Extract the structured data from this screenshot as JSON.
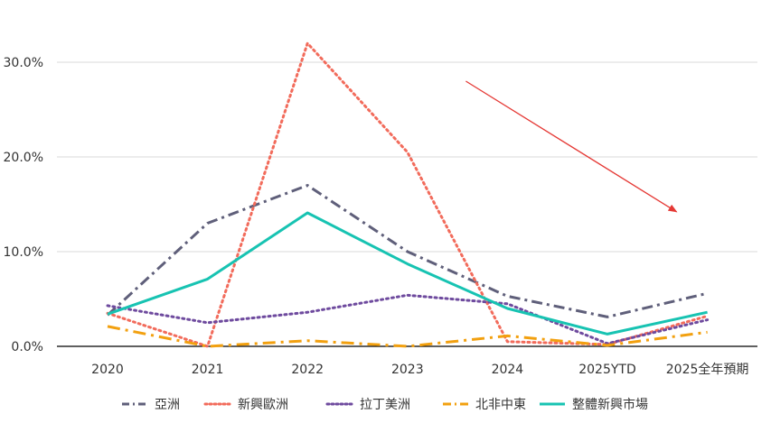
{
  "chart_data": {
    "type": "line",
    "title": "",
    "xlabel": "",
    "ylabel": "",
    "x": [
      "2020",
      "2021",
      "2022",
      "2023",
      "2024",
      "2025YTD",
      "2025全年預期"
    ],
    "ylim": [
      0,
      0.32
    ],
    "yticks": [
      0,
      0.1,
      0.2,
      0.3
    ],
    "ytick_labels": [
      "0.0%",
      "10.0%",
      "20.0%",
      "30.0%"
    ],
    "grid": true,
    "legend_position": "bottom",
    "series": [
      {
        "name": "亞洲",
        "color": "#5f5f7a",
        "dash": "dash-dot",
        "values": [
          0.033,
          0.13,
          0.17,
          0.1,
          0.053,
          0.031,
          0.056
        ]
      },
      {
        "name": "新興歐洲",
        "color": "#f26b5b",
        "dash": "dotted",
        "values": [
          0.035,
          0.0,
          0.32,
          0.205,
          0.005,
          0.002,
          0.032
        ]
      },
      {
        "name": "拉丁美洲",
        "color": "#6e4a9e",
        "dash": "dotted",
        "values": [
          0.043,
          0.025,
          0.036,
          0.054,
          0.045,
          0.003,
          0.028
        ]
      },
      {
        "name": "北非中東",
        "color": "#f2a00f",
        "dash": "long-dash-dot",
        "values": [
          0.021,
          0.0,
          0.006,
          0.0,
          0.011,
          0.001,
          0.015
        ]
      },
      {
        "name": "整體新興市場",
        "color": "#17c3b2",
        "dash": "solid",
        "values": [
          0.034,
          0.071,
          0.141,
          0.087,
          0.04,
          0.013,
          0.036
        ]
      }
    ],
    "annotations": [
      {
        "type": "arrow",
        "color": "#e53935",
        "from": {
          "x": "2024",
          "y": 0.28
        },
        "to": {
          "x": "2025全年預期",
          "y": 0.142
        }
      }
    ]
  }
}
